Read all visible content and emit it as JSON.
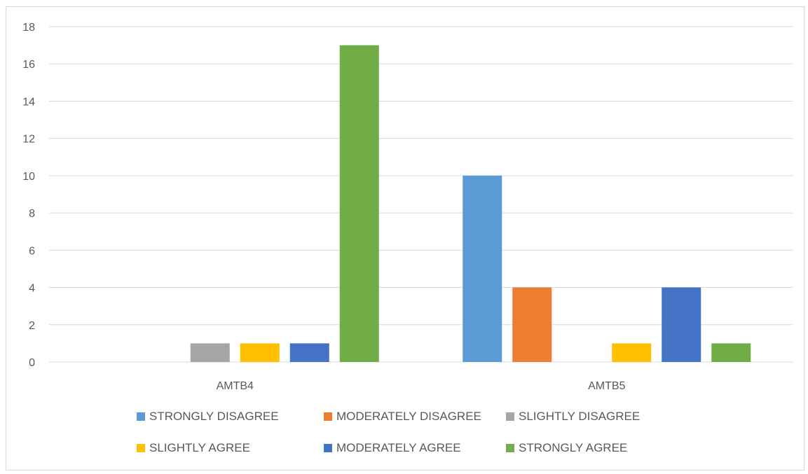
{
  "chart_data": {
    "type": "bar",
    "categories": [
      "AMTB4",
      "AMTB5"
    ],
    "series": [
      {
        "name": "STRONGLY DISAGREE",
        "color": "#5b9bd5",
        "values": [
          0,
          10
        ]
      },
      {
        "name": "MODERATELY DISAGREE",
        "color": "#ed7d31",
        "values": [
          0,
          4
        ]
      },
      {
        "name": "SLIGHTLY DISAGREE",
        "color": "#a5a5a5",
        "values": [
          1,
          0
        ]
      },
      {
        "name": "SLIGHTLY AGREE",
        "color": "#ffc000",
        "values": [
          1,
          1
        ]
      },
      {
        "name": "MODERATELY AGREE",
        "color": "#4472c4",
        "values": [
          1,
          4
        ]
      },
      {
        "name": "STRONGLY AGREE",
        "color": "#70ad47",
        "values": [
          17,
          1
        ]
      }
    ],
    "ylim": [
      0,
      18
    ],
    "yticks": [
      "0",
      "2",
      "4",
      "6",
      "8",
      "10",
      "12",
      "14",
      "16",
      "18"
    ],
    "grid": true,
    "legend_position": "bottom",
    "title": "",
    "xlabel": "",
    "ylabel": ""
  }
}
